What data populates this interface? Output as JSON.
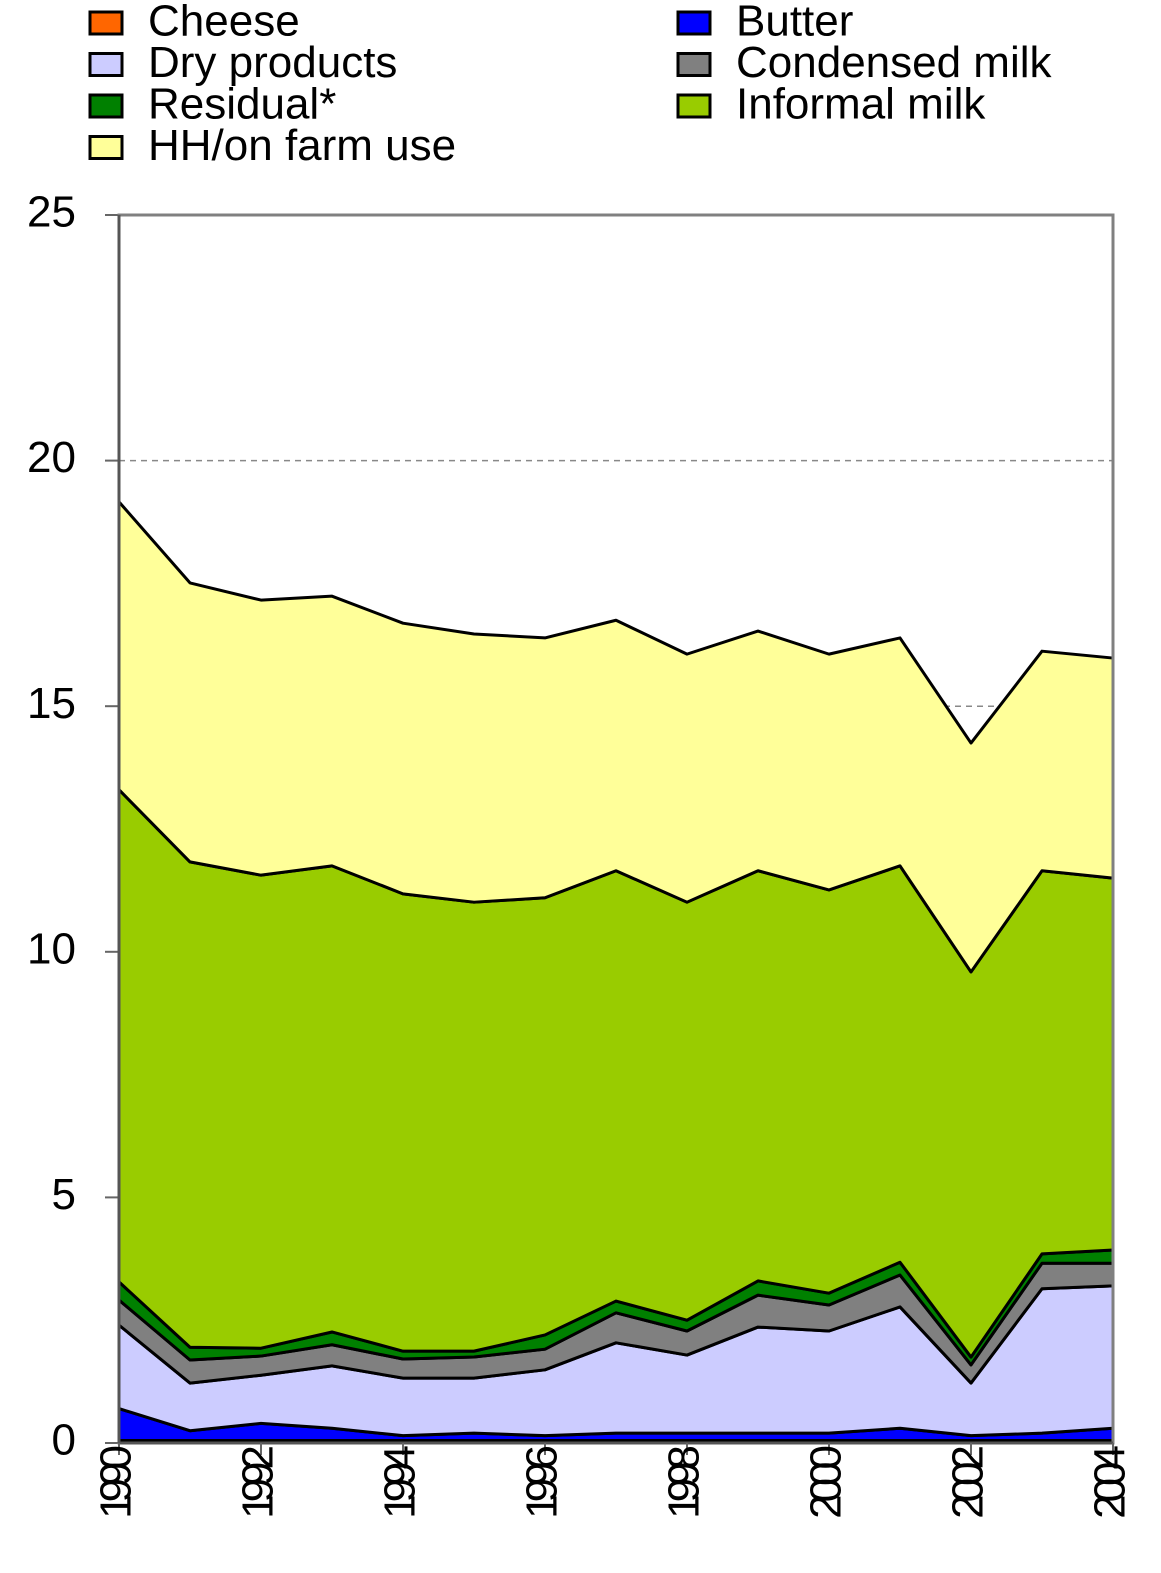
{
  "chart_data": {
    "type": "stacked_area",
    "x": [
      1990,
      1991,
      1992,
      1993,
      1994,
      1995,
      1996,
      1997,
      1998,
      1999,
      2000,
      2001,
      2002,
      2003,
      2004
    ],
    "xlim": [
      1990,
      2004
    ],
    "xticks": [
      1990,
      1992,
      1994,
      1996,
      1998,
      2000,
      2002,
      2004
    ],
    "ylim": [
      0,
      25
    ],
    "yticks": [
      0,
      5,
      10,
      15,
      20,
      25
    ],
    "grid": true,
    "series": [
      {
        "name": "Cheese",
        "color": "#ff6600",
        "values": [
          0.05,
          0.05,
          0.05,
          0.05,
          0.05,
          0.05,
          0.05,
          0.05,
          0.05,
          0.05,
          0.05,
          0.05,
          0.05,
          0.05,
          0.05
        ]
      },
      {
        "name": "Butter",
        "color": "#0000ff",
        "values": [
          0.65,
          0.2,
          0.35,
          0.25,
          0.1,
          0.15,
          0.1,
          0.15,
          0.15,
          0.15,
          0.15,
          0.25,
          0.1,
          0.15,
          0.25
        ]
      },
      {
        "name": "Dry products",
        "color": "#ccccff",
        "values": [
          1.7,
          0.97,
          0.98,
          1.27,
          1.17,
          1.12,
          1.34,
          1.84,
          1.59,
          2.16,
          2.08,
          2.47,
          1.07,
          2.94,
          2.9
        ]
      },
      {
        "name": "Condensed milk",
        "color": "#808080",
        "values": [
          0.51,
          0.47,
          0.39,
          0.43,
          0.39,
          0.43,
          0.42,
          0.61,
          0.49,
          0.65,
          0.53,
          0.65,
          0.37,
          0.52,
          0.46
        ]
      },
      {
        "name": "Residual*",
        "color": "#008000",
        "values": [
          0.37,
          0.26,
          0.16,
          0.26,
          0.16,
          0.12,
          0.29,
          0.24,
          0.22,
          0.29,
          0.24,
          0.26,
          0.16,
          0.19,
          0.27
        ]
      },
      {
        "name": "Informal milk",
        "color": "#99cc00",
        "values": [
          10.02,
          9.88,
          9.63,
          9.49,
          9.31,
          9.14,
          8.9,
          8.76,
          8.51,
          8.35,
          8.21,
          8.07,
          7.84,
          7.8,
          7.57
        ]
      },
      {
        "name": "HH/on farm use",
        "color": "#ffff99",
        "values": [
          5.86,
          5.68,
          5.6,
          5.49,
          5.51,
          5.46,
          5.29,
          5.1,
          5.05,
          4.88,
          4.8,
          4.64,
          4.66,
          4.47,
          4.48
        ]
      }
    ]
  }
}
